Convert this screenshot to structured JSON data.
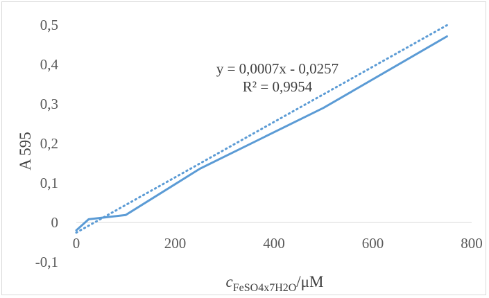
{
  "chart_data": {
    "type": "line",
    "xlabel": {
      "main": "c",
      "sub": "FeSO4x7H2O",
      "unit": "/μM"
    },
    "ylabel": "A 595",
    "xlim": [
      0,
      800
    ],
    "ylim": [
      -0.1,
      0.5
    ],
    "x_ticks": [
      "0",
      "200",
      "400",
      "600",
      "800"
    ],
    "y_ticks": [
      "-0,1",
      "0",
      "0,1",
      "0,2",
      "0,3",
      "0,4",
      "0,5"
    ],
    "grid": false,
    "legend": "none",
    "series": [
      {
        "style": "solid",
        "color": "#5b9bd5",
        "x": [
          0,
          25,
          100,
          250,
          500,
          750
        ],
        "y": [
          -0.02,
          0.008,
          0.019,
          0.136,
          0.29,
          0.471
        ]
      }
    ],
    "trendline": {
      "style": "dotted",
      "color": "#5b9bd5",
      "slope": 0.0007,
      "intercept": -0.0257,
      "x_range": [
        0,
        750
      ],
      "equation": "y = 0,0007x - 0,0257",
      "r_squared": "R² = 0,9954"
    }
  }
}
